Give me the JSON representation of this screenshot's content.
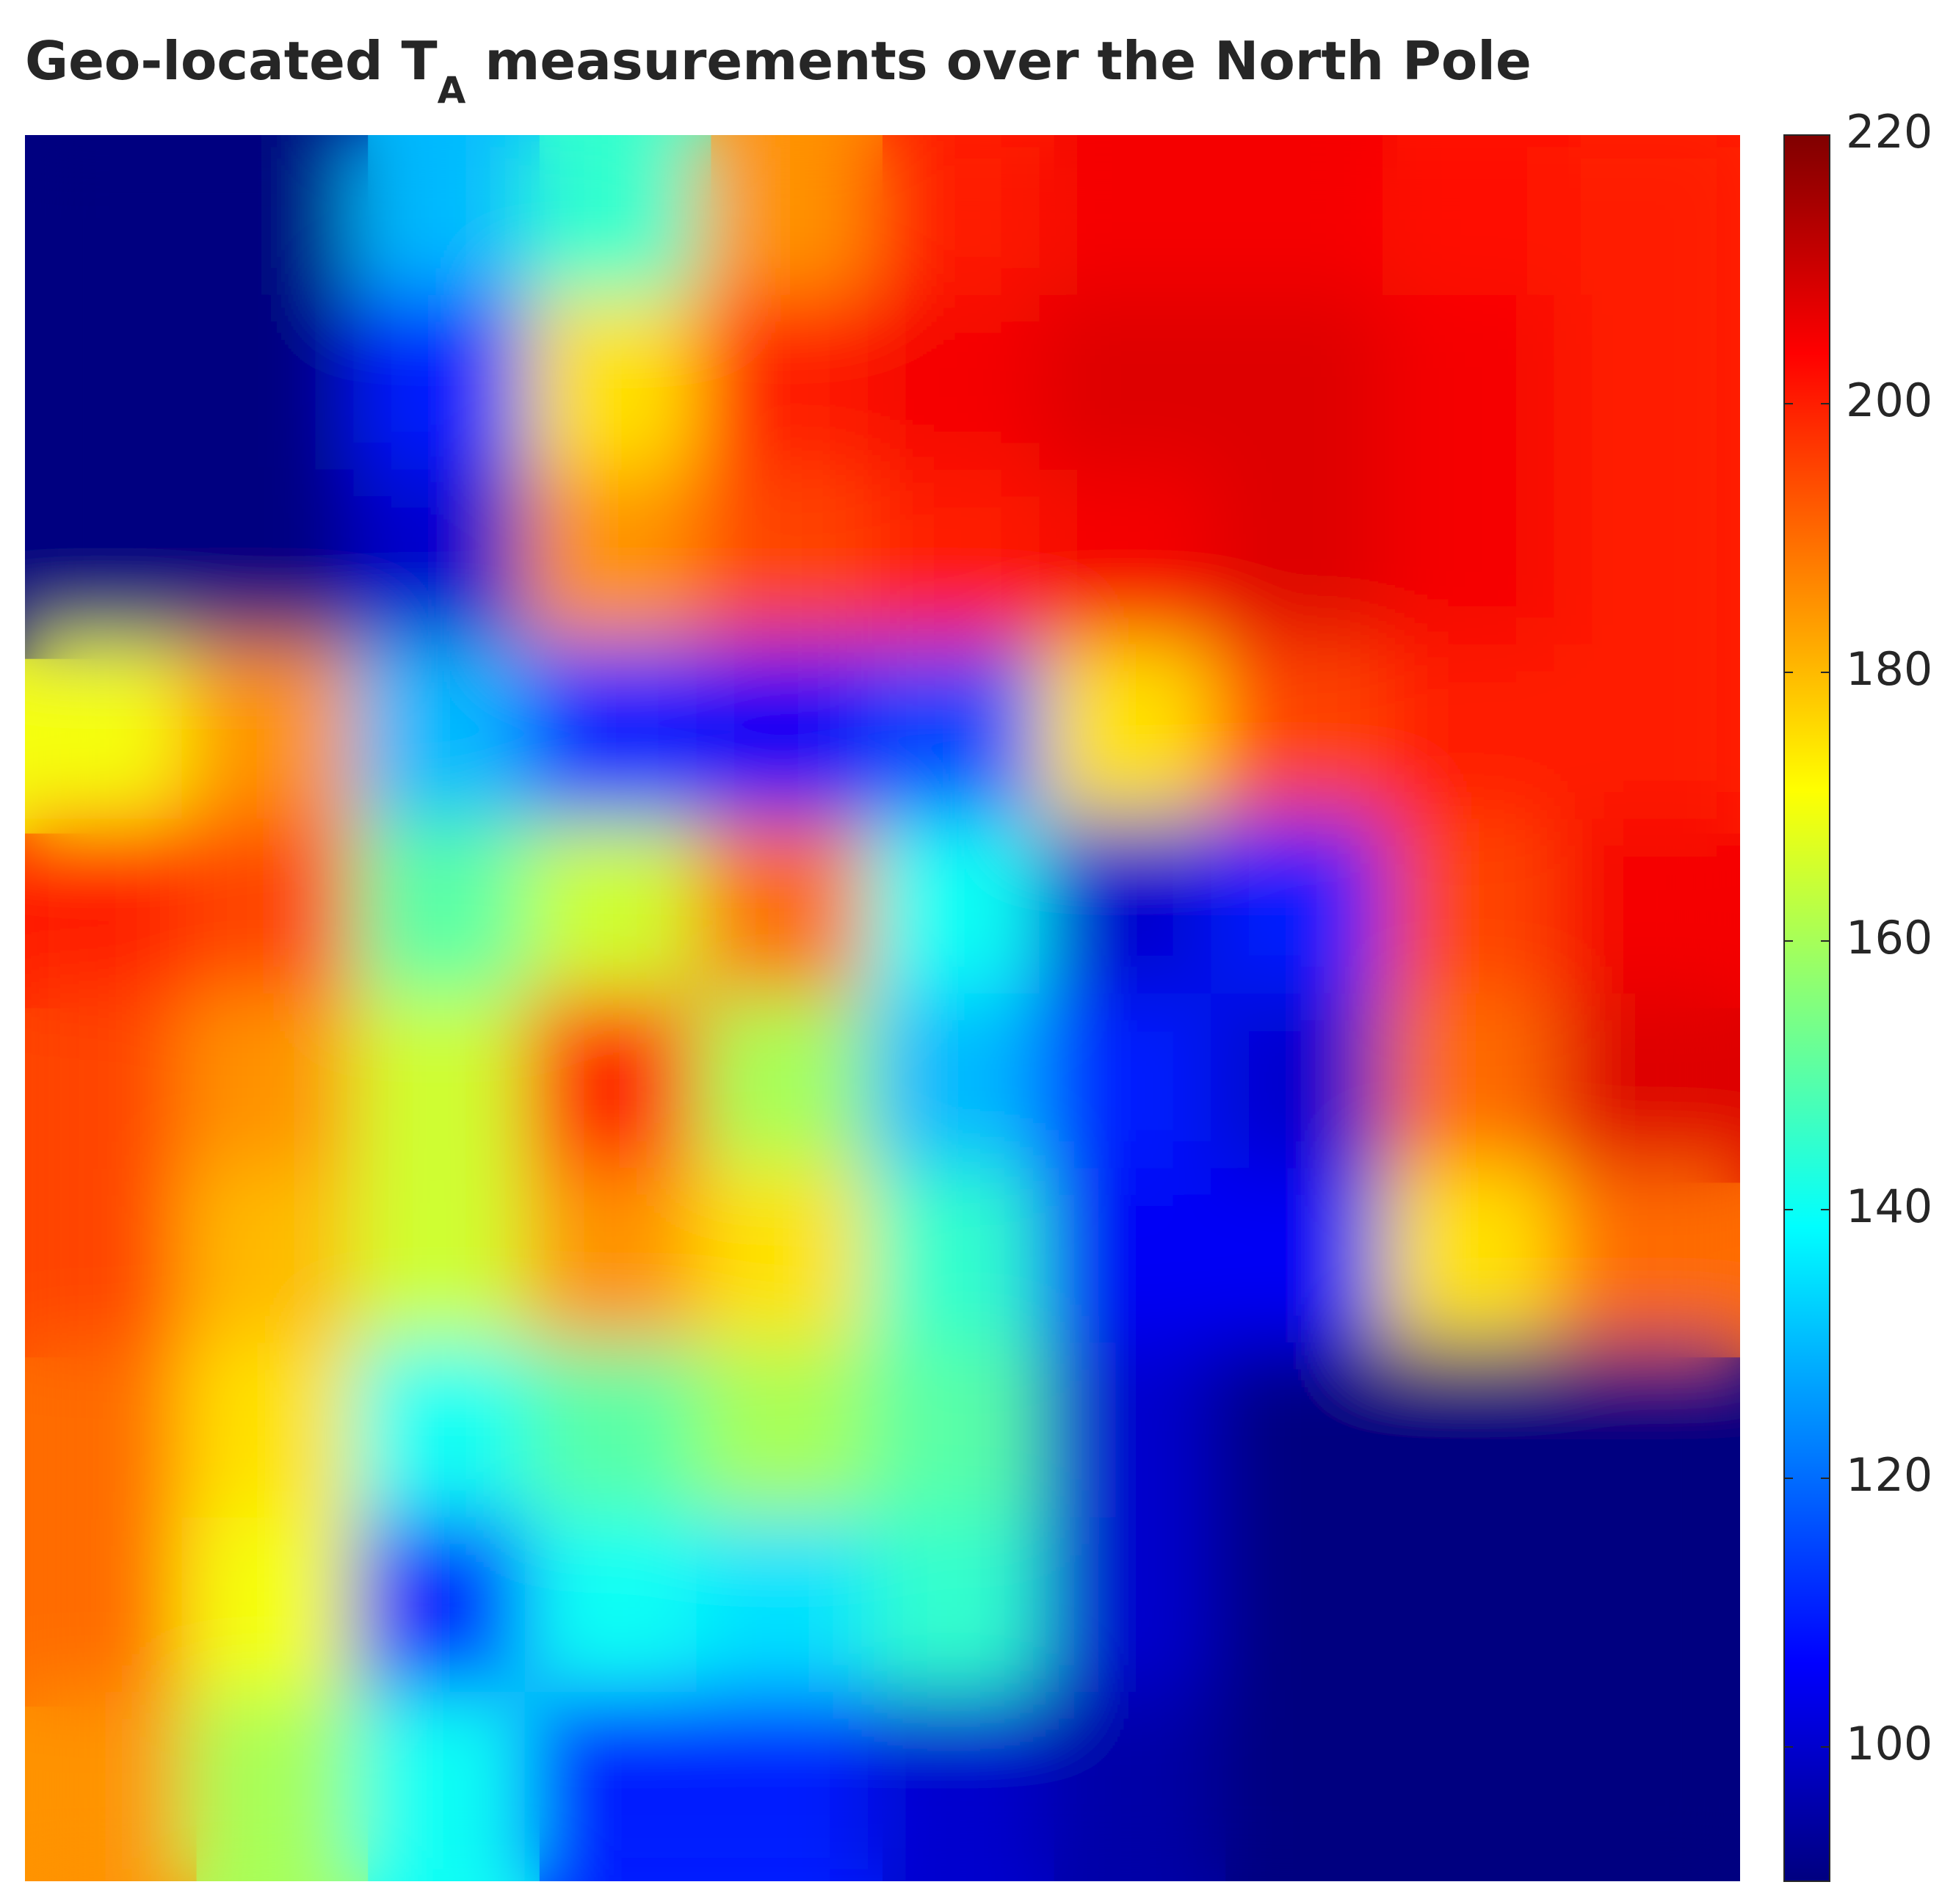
{
  "chart_data": {
    "type": "heatmap",
    "title": [
      "Geo-located T",
      "A",
      "measurements over the North Pole"
    ],
    "colormap": "jet",
    "clim": [
      90,
      220
    ],
    "colorbar_ticks": [
      100,
      120,
      140,
      160,
      180,
      200,
      220
    ],
    "z": [
      [
        90,
        90,
        130,
        145,
        185,
        200,
        205,
        205,
        202,
        200
      ],
      [
        90,
        90,
        110,
        175,
        200,
        205,
        208,
        208,
        205,
        200
      ],
      [
        90,
        90,
        100,
        185,
        195,
        200,
        205,
        208,
        205,
        200
      ],
      [
        170,
        185,
        130,
        110,
        105,
        115,
        175,
        195,
        200,
        200
      ],
      [
        200,
        195,
        150,
        165,
        190,
        140,
        100,
        110,
        195,
        205
      ],
      [
        195,
        185,
        165,
        200,
        160,
        130,
        110,
        100,
        190,
        208
      ],
      [
        195,
        180,
        165,
        185,
        175,
        145,
        105,
        105,
        175,
        190
      ],
      [
        190,
        175,
        140,
        150,
        160,
        150,
        100,
        90,
        90,
        90
      ],
      [
        190,
        170,
        110,
        140,
        135,
        145,
        100,
        90,
        90,
        90
      ],
      [
        185,
        160,
        140,
        110,
        110,
        100,
        95,
        90,
        90,
        90
      ]
    ]
  }
}
